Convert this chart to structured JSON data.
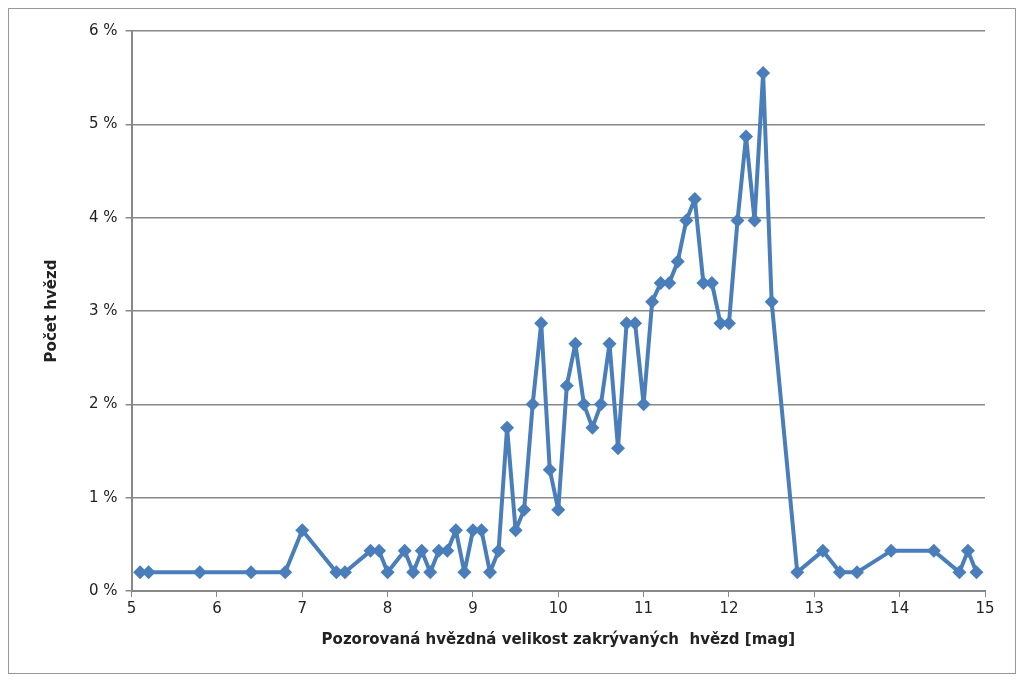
{
  "chart_data": {
    "type": "line",
    "xlabel": "Pozorovaná hvězdná velikost zakrývaných  hvězd [mag]",
    "ylabel": "Počet hvězd",
    "x": [
      5.1,
      5.2,
      5.8,
      6.4,
      6.8,
      7.0,
      7.4,
      7.5,
      7.8,
      7.9,
      8.0,
      8.2,
      8.3,
      8.4,
      8.5,
      8.6,
      8.7,
      8.8,
      8.9,
      9.0,
      9.1,
      9.2,
      9.3,
      9.4,
      9.5,
      9.6,
      9.7,
      9.8,
      9.9,
      10.0,
      10.1,
      10.2,
      10.3,
      10.4,
      10.5,
      10.6,
      10.7,
      10.8,
      10.9,
      11.0,
      11.1,
      11.2,
      11.3,
      11.4,
      11.5,
      11.6,
      11.7,
      11.8,
      11.9,
      12.0,
      12.1,
      12.2,
      12.3,
      12.4,
      12.5,
      12.8,
      13.1,
      13.3,
      13.5,
      13.9,
      14.4,
      14.7,
      14.8,
      14.9
    ],
    "series": [
      {
        "color": "#4a7ebb",
        "values": [
          0.2,
          0.2,
          0.2,
          0.2,
          0.2,
          0.65,
          0.2,
          0.2,
          0.43,
          0.43,
          0.2,
          0.43,
          0.2,
          0.43,
          0.2,
          0.43,
          0.43,
          0.65,
          0.2,
          0.65,
          0.65,
          0.2,
          0.43,
          1.75,
          0.65,
          0.87,
          2.0,
          2.87,
          1.3,
          0.87,
          2.2,
          2.65,
          2.0,
          1.75,
          2.0,
          2.65,
          1.53,
          2.87,
          2.87,
          2.0,
          3.1,
          3.3,
          3.3,
          3.53,
          3.97,
          4.2,
          3.3,
          3.3,
          2.87,
          2.87,
          3.97,
          4.87,
          3.97,
          5.55,
          3.1,
          0.2,
          0.43,
          0.2,
          0.2,
          0.43,
          0.43,
          0.2,
          0.43,
          0.2
        ]
      }
    ],
    "xlim": [
      5,
      15
    ],
    "xticks": [
      5,
      6,
      7,
      8,
      9,
      10,
      11,
      12,
      13,
      14,
      15
    ],
    "ylim": [
      0,
      6
    ],
    "yticks": [
      {
        "value": 0,
        "label": "0 %"
      },
      {
        "value": 1,
        "label": "1 %"
      },
      {
        "value": 2,
        "label": "2 %"
      },
      {
        "value": 3,
        "label": "3 %"
      },
      {
        "value": 4,
        "label": "4 %"
      },
      {
        "value": 5,
        "label": "5 %"
      },
      {
        "value": 6,
        "label": "6 %"
      }
    ],
    "grid": "y",
    "legend": false,
    "marker": "diamond",
    "line_style": "solid"
  }
}
